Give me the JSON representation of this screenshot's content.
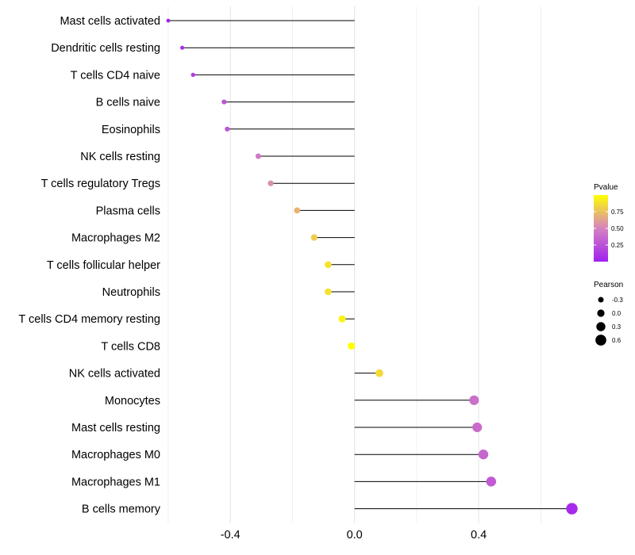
{
  "chart_data": {
    "type": "lollipop",
    "xlabel": "",
    "ylabel": "",
    "xlim": [
      -0.605,
      0.755
    ],
    "xticks": [
      -0.4,
      0.0,
      0.4
    ],
    "xtick_labels": [
      "-0.4",
      "0.0",
      "0.4"
    ],
    "minor_gridlines": [
      -0.6,
      -0.2,
      0.2,
      0.6
    ],
    "baseline": 0.0,
    "categories": [
      "Mast cells activated",
      "Dendritic cells resting",
      "T cells CD4 naive",
      "B cells naive",
      "Eosinophils",
      "NK cells resting",
      "T cells regulatory  Tregs ",
      "Plasma cells",
      "Macrophages M2",
      "T cells follicular helper",
      "Neutrophils",
      "T cells CD4 memory resting",
      "T cells CD8",
      "NK cells activated",
      "Monocytes",
      "Mast cells resting",
      "Macrophages M0",
      "Macrophages M1",
      "B cells memory"
    ],
    "pearson": [
      -0.6,
      -0.555,
      -0.52,
      -0.42,
      -0.41,
      -0.31,
      -0.27,
      -0.185,
      -0.13,
      -0.085,
      -0.085,
      -0.04,
      -0.01,
      0.08,
      0.385,
      0.395,
      0.415,
      0.44,
      0.7
    ],
    "pvalue": [
      0.0,
      0.07,
      0.15,
      0.25,
      0.27,
      0.45,
      0.55,
      0.7,
      0.8,
      0.88,
      0.88,
      0.95,
      1.0,
      0.85,
      0.4,
      0.38,
      0.35,
      0.3,
      0.05
    ],
    "legend_pvalue": {
      "title": "Pvalue",
      "ticks": [
        0.25,
        0.5,
        0.75
      ],
      "tick_labels": [
        "0.25",
        "0.50",
        "0.75"
      ],
      "range": [
        0.0,
        1.0
      ],
      "color_low": "#a020f0",
      "color_mid": "#d583c0",
      "color_high": "#ffff00"
    },
    "legend_pearson": {
      "title": "Pearson",
      "values": [
        -0.3,
        0.0,
        0.3,
        0.6
      ],
      "labels": [
        "-0.3",
        "0.0",
        "0.3",
        "0.6"
      ]
    }
  }
}
